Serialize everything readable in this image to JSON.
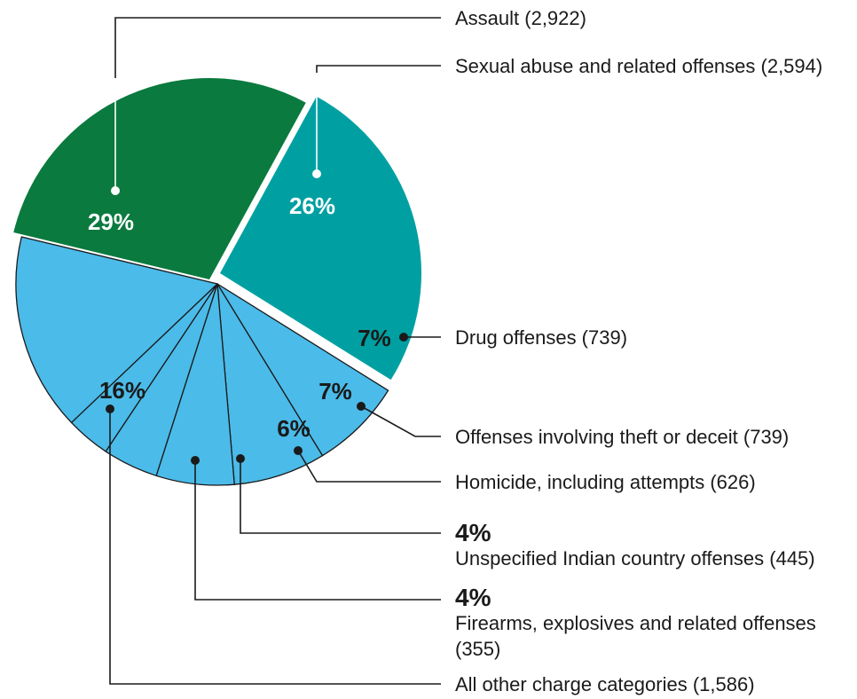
{
  "chart_data": {
    "type": "pie",
    "colors": {
      "assault": "#0a7a3e",
      "sexual_abuse": "#00a0a2",
      "light": "#4bbbe9",
      "divider": "#1a1a1a"
    },
    "slices": [
      {
        "id": "assault",
        "label": "Assault (2,922)",
        "value": 2922,
        "percent": "29%",
        "color": "#0a7a3e",
        "exploded": true
      },
      {
        "id": "sexual-abuse",
        "label": "Sexual abuse and related offenses (2,594)",
        "value": 2594,
        "percent": "26%",
        "color": "#00a0a2",
        "exploded": true
      },
      {
        "id": "drug",
        "label": "Drug offenses (739)",
        "value": 739,
        "percent": "7%",
        "color": "#4bbbe9"
      },
      {
        "id": "theft",
        "label": "Offenses involving theft or deceit (739)",
        "value": 739,
        "percent": "7%",
        "color": "#4bbbe9"
      },
      {
        "id": "homicide",
        "label": "Homicide, including attempts (626)",
        "value": 626,
        "percent": "6%",
        "color": "#4bbbe9"
      },
      {
        "id": "indian-country",
        "label": "Unspecified Indian country offenses (445)",
        "value": 445,
        "percent": "4%",
        "color": "#4bbbe9"
      },
      {
        "id": "firearms",
        "label_lines": [
          "Firearms, explosives and related offenses",
          "(355)"
        ],
        "value": 355,
        "percent": "4%",
        "color": "#4bbbe9"
      },
      {
        "id": "other",
        "label": "All other charge categories (1,586)",
        "value": 1586,
        "percent": "16%",
        "color": "#4bbbe9"
      }
    ]
  }
}
